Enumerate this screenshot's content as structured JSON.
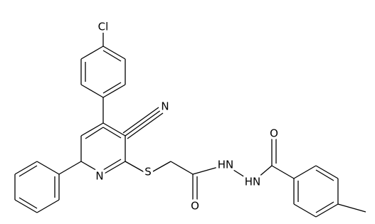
{
  "atoms": [
    {
      "label": "Cl"
    },
    {
      "label": "N"
    },
    {
      "label": "N"
    },
    {
      "label": "S"
    },
    {
      "label": "O"
    },
    {
      "label": "HN"
    },
    {
      "label": "HN"
    },
    {
      "label": "O"
    }
  ]
}
